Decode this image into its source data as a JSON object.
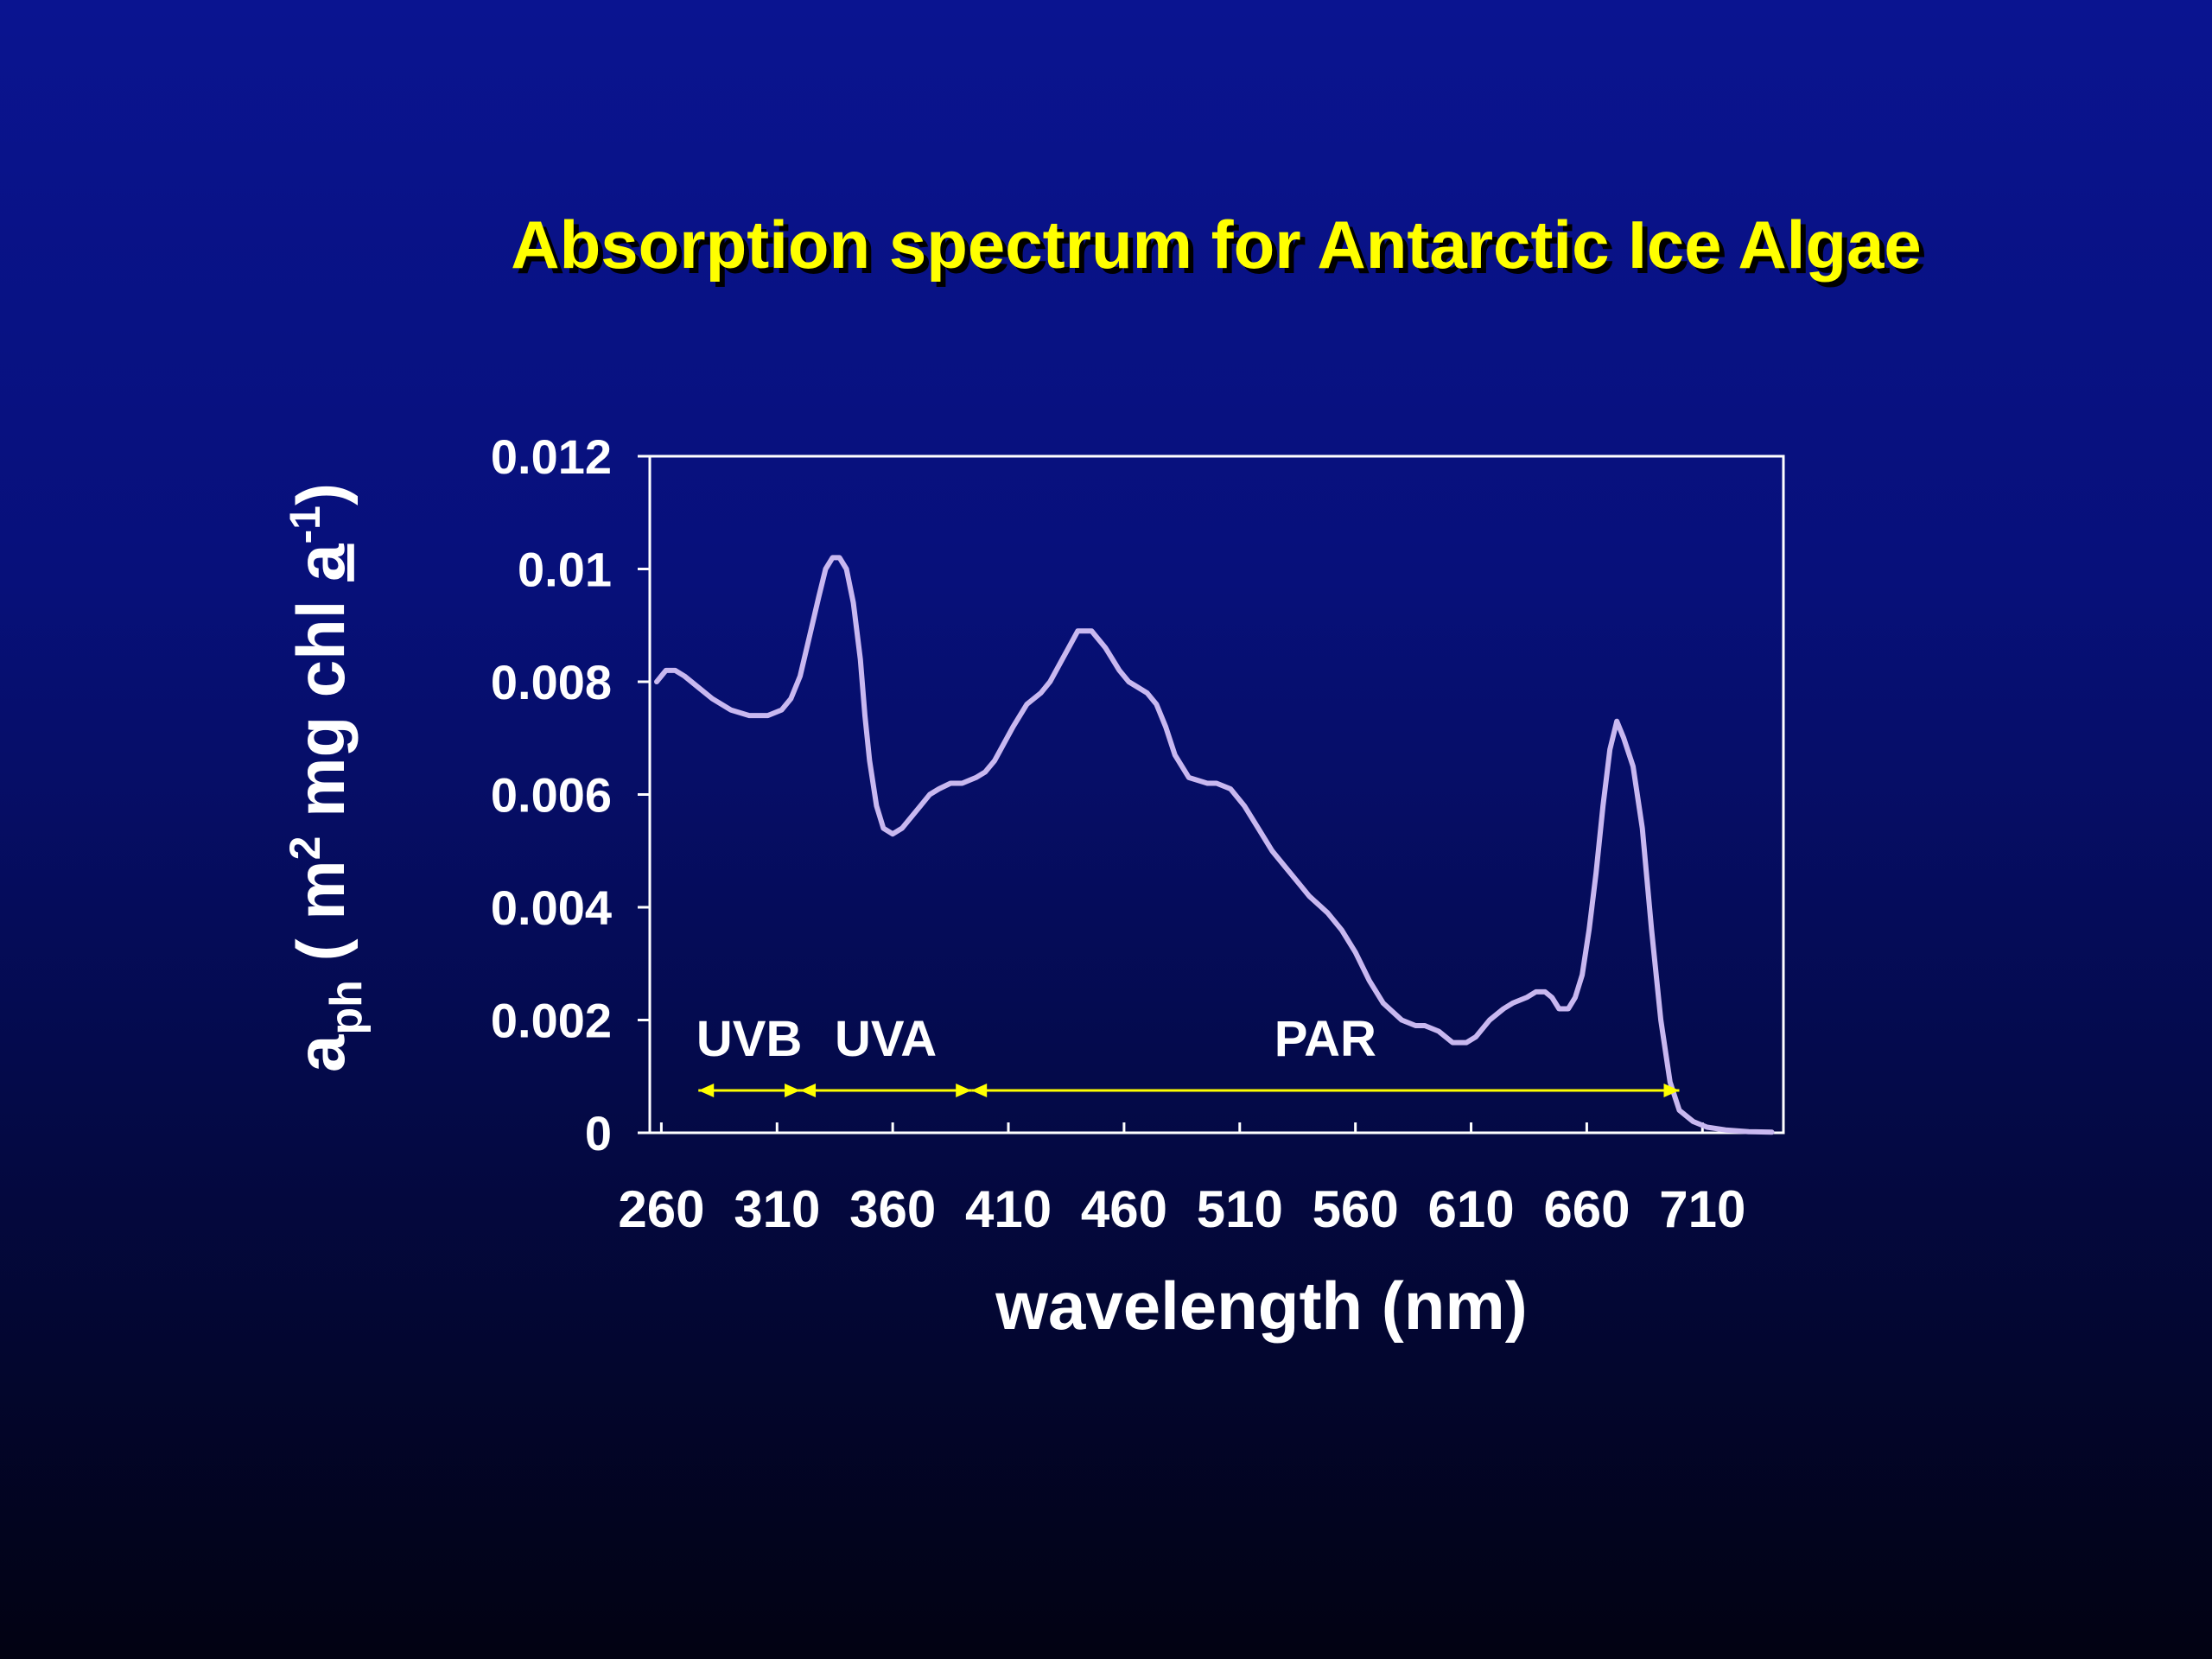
{
  "slide": {
    "title": "Absorption spectrum for Antarctic Ice Algae"
  },
  "colors": {
    "title": "#ffff00",
    "axis": "#ffffff",
    "curve": "#c9b8f0",
    "band_arrows": "#ffff00"
  },
  "chart_data": {
    "type": "line",
    "title": "",
    "xlabel": "wavelength (nm)",
    "ylabel": {
      "main": "a",
      "sub": "ph",
      "unit_a": " ( m",
      "sup1": "2",
      "unit_b": " mg chl ",
      "unit_c": "a",
      "sup2": "-1",
      "unit_d": ")"
    },
    "xlim": [
      255,
      745
    ],
    "ylim": [
      0,
      0.012
    ],
    "xticks": [
      260,
      310,
      360,
      410,
      460,
      510,
      560,
      610,
      660,
      710
    ],
    "yticks": [
      0,
      0.002,
      0.004,
      0.006,
      0.008,
      0.01,
      0.012
    ],
    "ytick_labels": [
      "0",
      "0.002",
      "0.004",
      "0.006",
      "0.008",
      "0.01",
      "0.012"
    ],
    "grid": false,
    "series": [
      {
        "x": [
          258,
          262,
          266,
          270,
          276,
          282,
          290,
          298,
          306,
          312,
          316,
          320,
          324,
          328,
          331,
          334,
          337,
          340,
          343,
          346,
          348,
          350,
          353,
          356,
          360,
          364,
          368,
          372,
          376,
          380,
          385,
          390,
          396,
          400,
          404,
          408,
          412,
          418,
          424,
          428,
          432,
          436,
          440,
          446,
          452,
          458,
          462,
          466,
          470,
          474,
          478,
          482,
          488,
          496,
          500,
          506,
          512,
          518,
          524,
          530,
          536,
          540,
          548,
          554,
          560,
          566,
          572,
          580,
          586,
          590,
          596,
          602,
          608,
          612,
          618,
          624,
          628,
          634,
          638,
          642,
          645,
          648,
          652,
          655,
          658,
          661,
          664,
          667,
          670,
          673,
          676,
          680,
          684,
          688,
          692,
          696,
          700,
          706,
          712,
          720,
          730,
          740
        ],
        "y": [
          0.008,
          0.0082,
          0.0082,
          0.0081,
          0.0079,
          0.0077,
          0.0075,
          0.0074,
          0.0074,
          0.0075,
          0.0077,
          0.0081,
          0.0088,
          0.0095,
          0.01,
          0.0102,
          0.0102,
          0.01,
          0.0094,
          0.0084,
          0.0074,
          0.0066,
          0.0058,
          0.0054,
          0.0053,
          0.0054,
          0.0056,
          0.0058,
          0.006,
          0.0061,
          0.0062,
          0.0062,
          0.0063,
          0.0064,
          0.0066,
          0.0069,
          0.0072,
          0.0076,
          0.0078,
          0.008,
          0.0083,
          0.0086,
          0.0089,
          0.0089,
          0.0086,
          0.0082,
          0.008,
          0.0079,
          0.0078,
          0.0076,
          0.0072,
          0.0067,
          0.0063,
          0.0062,
          0.0062,
          0.0061,
          0.0058,
          0.0054,
          0.005,
          0.0047,
          0.0044,
          0.0042,
          0.0039,
          0.0036,
          0.0032,
          0.0027,
          0.0023,
          0.002,
          0.0019,
          0.0019,
          0.0018,
          0.0016,
          0.0016,
          0.0017,
          0.002,
          0.0022,
          0.0023,
          0.0024,
          0.0025,
          0.0025,
          0.0024,
          0.0022,
          0.0022,
          0.0024,
          0.0028,
          0.0036,
          0.0046,
          0.0058,
          0.0068,
          0.0073,
          0.007,
          0.0065,
          0.0054,
          0.0036,
          0.002,
          0.0009,
          0.0004,
          0.0002,
          0.0001,
          5e-05,
          2e-05,
          1e-05
        ]
      }
    ],
    "bands": [
      {
        "label": "UVB",
        "start": 276,
        "end": 320
      },
      {
        "label": "UVA",
        "start": 320,
        "end": 394
      },
      {
        "label": "PAR",
        "start": 394,
        "end": 700
      }
    ]
  }
}
